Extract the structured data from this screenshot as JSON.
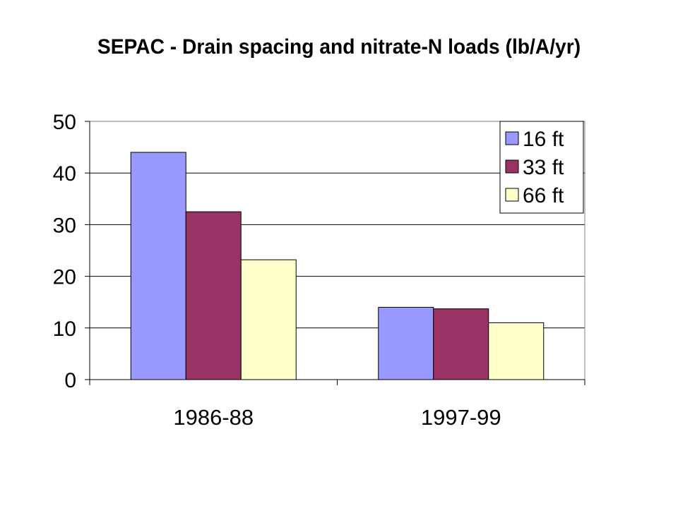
{
  "chart_data": {
    "type": "bar",
    "title": "SEPAC - Drain spacing and nitrate-N loads (lb/A/yr)",
    "categories": [
      "1986-88",
      "1997-99"
    ],
    "series": [
      {
        "name": "16 ft",
        "values": [
          44,
          14
        ],
        "color": "#9999ff"
      },
      {
        "name": "33 ft",
        "values": [
          32.5,
          13.7
        ],
        "color": "#993366"
      },
      {
        "name": "66 ft",
        "values": [
          23.2,
          11
        ],
        "color": "#ffffcc"
      }
    ],
    "ylim": [
      0,
      50
    ],
    "yticks": [
      0,
      10,
      20,
      30,
      40,
      50
    ],
    "grid": true,
    "legend": "top-right"
  }
}
